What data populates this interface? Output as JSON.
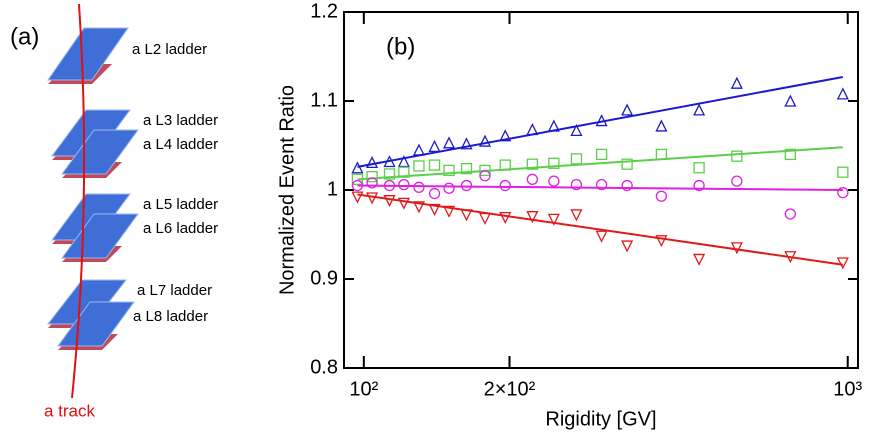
{
  "diagram": {
    "panel_label": "(a)",
    "labels": [
      "a L2 ladder",
      "a L3 ladder",
      "a L4 ladder",
      "a L5 ladder",
      "a L6 ladder",
      "a L7 ladder",
      "a L8 ladder"
    ],
    "track_label": "a track"
  },
  "chart_data": {
    "type": "scatter",
    "panel_label": "(b)",
    "x_label": "Rigidity [GV]",
    "y_label": "Normalized Event Ratio",
    "xlog": true,
    "xlim": [
      91,
      1050
    ],
    "ylim": [
      0.8,
      1.2
    ],
    "xticks": [
      {
        "value": 100,
        "label": "10²"
      },
      {
        "value": 200,
        "label": "2×10²"
      },
      {
        "value": 1000,
        "label": "10³"
      }
    ],
    "yticks": [
      0.8,
      0.9,
      1,
      1.1,
      1.2
    ],
    "x": [
      97,
      104,
      113,
      121,
      130,
      140,
      150,
      163,
      178,
      196,
      223,
      247,
      275,
      310,
      350,
      412,
      493,
      590,
      761,
      977
    ],
    "fit_x": [
      97,
      977
    ],
    "series": [
      {
        "color": "#1a1ad0",
        "marker": "triangle-up",
        "values": [
          1.025,
          1.031,
          1.032,
          1.032,
          1.045,
          1.049,
          1.053,
          1.052,
          1.055,
          1.061,
          1.068,
          1.072,
          1.067,
          1.078,
          1.09,
          1.072,
          1.09,
          1.12,
          1.1,
          1.108
        ],
        "fit_values": [
          1.026,
          1.127
        ]
      },
      {
        "color": "#5ccf4a",
        "marker": "square",
        "values": [
          1.012,
          1.015,
          1.018,
          1.02,
          1.027,
          1.028,
          1.022,
          1.024,
          1.022,
          1.028,
          1.029,
          1.03,
          1.035,
          1.04,
          1.029,
          1.04,
          1.025,
          1.038,
          1.04,
          1.02
        ],
        "fit_values": [
          1.012,
          1.048
        ]
      },
      {
        "color": "#e020e0",
        "marker": "circle",
        "values": [
          1.005,
          1.008,
          1.005,
          1.006,
          1.003,
          0.996,
          1.002,
          1.005,
          1.016,
          1.005,
          1.012,
          1.01,
          1.006,
          1.006,
          1.005,
          0.993,
          1.005,
          1.01,
          0.973,
          0.997
        ],
        "fit_values": [
          1.005,
          1.0
        ]
      },
      {
        "color": "#e01a1a",
        "marker": "triangle-down",
        "values": [
          0.992,
          0.991,
          0.988,
          0.985,
          0.981,
          0.978,
          0.976,
          0.972,
          0.968,
          0.969,
          0.97,
          0.967,
          0.972,
          0.948,
          0.937,
          0.943,
          0.922,
          0.935,
          0.925,
          0.918
        ],
        "fit_values": [
          0.995,
          0.916
        ]
      }
    ]
  }
}
